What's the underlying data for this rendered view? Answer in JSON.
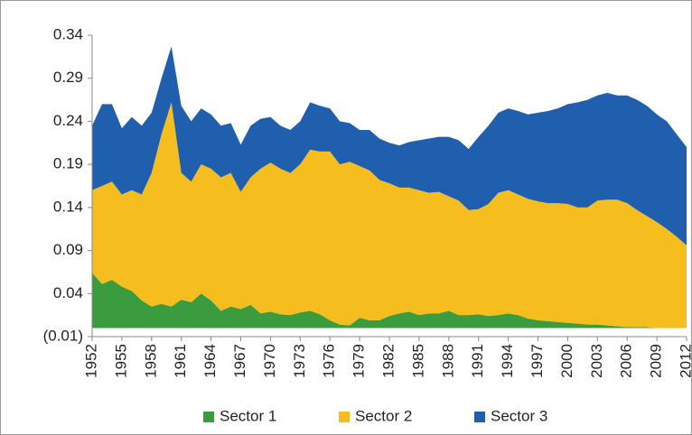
{
  "chart_data": {
    "type": "stacked_area",
    "x": [
      1952,
      1953,
      1954,
      1955,
      1956,
      1957,
      1958,
      1959,
      1960,
      1961,
      1962,
      1963,
      1964,
      1965,
      1966,
      1967,
      1968,
      1969,
      1970,
      1971,
      1972,
      1973,
      1974,
      1975,
      1976,
      1977,
      1978,
      1979,
      1980,
      1981,
      1982,
      1983,
      1984,
      1985,
      1986,
      1987,
      1988,
      1989,
      1990,
      1991,
      1992,
      1993,
      1994,
      1995,
      1996,
      1997,
      1998,
      1999,
      2000,
      2001,
      2002,
      2003,
      2004,
      2005,
      2006,
      2007,
      2008,
      2009,
      2010,
      2011,
      2012
    ],
    "series": [
      {
        "name": "Sector 1",
        "color": "#3a9b3f",
        "values": [
          0.064,
          0.051,
          0.056,
          0.048,
          0.043,
          0.032,
          0.025,
          0.028,
          0.025,
          0.033,
          0.03,
          0.04,
          0.032,
          0.02,
          0.025,
          0.022,
          0.027,
          0.017,
          0.019,
          0.016,
          0.015,
          0.018,
          0.02,
          0.016,
          0.009,
          0.004,
          0.003,
          0.012,
          0.009,
          0.009,
          0.014,
          0.017,
          0.019,
          0.015,
          0.017,
          0.017,
          0.02,
          0.015,
          0.015,
          0.016,
          0.014,
          0.015,
          0.017,
          0.015,
          0.011,
          0.009,
          0.008,
          0.007,
          0.006,
          0.005,
          0.004,
          0.004,
          0.003,
          0.002,
          0.001,
          0.001,
          0.001,
          0,
          0,
          0,
          0
        ]
      },
      {
        "name": "Sector 2",
        "color": "#f5be1e",
        "values": [
          0.096,
          0.114,
          0.114,
          0.107,
          0.117,
          0.123,
          0.155,
          0.197,
          0.237,
          0.147,
          0.14,
          0.15,
          0.153,
          0.155,
          0.155,
          0.136,
          0.148,
          0.168,
          0.173,
          0.169,
          0.165,
          0.172,
          0.187,
          0.189,
          0.196,
          0.186,
          0.19,
          0.176,
          0.174,
          0.163,
          0.154,
          0.146,
          0.144,
          0.145,
          0.14,
          0.141,
          0.133,
          0.133,
          0.122,
          0.122,
          0.13,
          0.142,
          0.143,
          0.14,
          0.139,
          0.138,
          0.137,
          0.138,
          0.138,
          0.135,
          0.136,
          0.144,
          0.146,
          0.147,
          0.144,
          0.136,
          0.129,
          0.123,
          0.115,
          0.106,
          0.096
        ]
      },
      {
        "name": "Sector 3",
        "color": "#1f5fae",
        "values": [
          0.075,
          0.095,
          0.09,
          0.077,
          0.085,
          0.08,
          0.07,
          0.065,
          0.065,
          0.078,
          0.07,
          0.065,
          0.063,
          0.06,
          0.058,
          0.055,
          0.06,
          0.058,
          0.053,
          0.05,
          0.05,
          0.05,
          0.055,
          0.053,
          0.05,
          0.05,
          0.045,
          0.042,
          0.047,
          0.048,
          0.047,
          0.049,
          0.053,
          0.058,
          0.063,
          0.064,
          0.069,
          0.07,
          0.071,
          0.084,
          0.091,
          0.093,
          0.095,
          0.097,
          0.098,
          0.103,
          0.107,
          0.11,
          0.116,
          0.122,
          0.125,
          0.122,
          0.124,
          0.121,
          0.125,
          0.128,
          0.128,
          0.125,
          0.125,
          0.119,
          0.114
        ]
      }
    ],
    "xlim": [
      1952,
      2012
    ],
    "xticks": [
      1952,
      1955,
      1958,
      1961,
      1964,
      1967,
      1970,
      1973,
      1976,
      1979,
      1982,
      1985,
      1988,
      1991,
      1994,
      1997,
      2000,
      2003,
      2006,
      2009,
      2012
    ],
    "ylim": [
      -0.01,
      0.34
    ],
    "yticks": [
      {
        "value": -0.01,
        "label": "(0.01)"
      },
      0.04,
      0.09,
      0.14,
      0.19,
      0.24,
      0.29,
      0.34
    ],
    "legend": "bottom"
  }
}
